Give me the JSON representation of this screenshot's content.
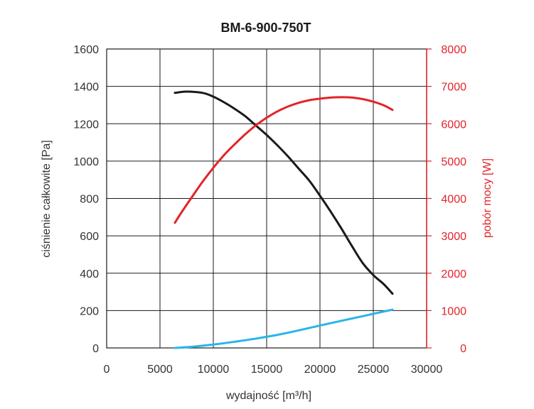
{
  "chart_data": {
    "type": "line",
    "title": "BM-6-900-750T",
    "xlabel": "wydajność [m³/h]",
    "ylabel_left": "ciśnienie całkowite [Pa]",
    "ylabel_right": "pobór mocy [W]",
    "xlim": [
      0,
      30000
    ],
    "ylim_left": [
      0,
      1600
    ],
    "ylim_right": [
      0,
      8000
    ],
    "grid": true,
    "x_ticks": [
      "0",
      "5000",
      "10000",
      "15000",
      "20000",
      "25000",
      "30000"
    ],
    "y_ticks_left": [
      "0",
      "200",
      "400",
      "600",
      "800",
      "1000",
      "1200",
      "1400",
      "1600"
    ],
    "y_ticks_right": [
      "0",
      "1000",
      "2000",
      "3000",
      "4000",
      "5000",
      "6000",
      "7000",
      "8000"
    ],
    "series": [
      {
        "id": "total-pressure",
        "axis": "left",
        "color": "#1a1a1a",
        "points": [
          [
            6400,
            1365
          ],
          [
            7500,
            1372
          ],
          [
            9000,
            1365
          ],
          [
            10000,
            1345
          ],
          [
            11000,
            1315
          ],
          [
            12000,
            1280
          ],
          [
            13000,
            1240
          ],
          [
            14000,
            1190
          ],
          [
            15000,
            1140
          ],
          [
            16000,
            1085
          ],
          [
            17000,
            1025
          ],
          [
            18000,
            960
          ],
          [
            19000,
            895
          ],
          [
            20000,
            815
          ],
          [
            21000,
            730
          ],
          [
            22000,
            640
          ],
          [
            23000,
            545
          ],
          [
            24000,
            455
          ],
          [
            25000,
            390
          ],
          [
            26000,
            340
          ],
          [
            26800,
            290
          ]
        ]
      },
      {
        "id": "power-consumption",
        "axis": "right",
        "color": "#e2242b",
        "points": [
          [
            6400,
            3350
          ],
          [
            7000,
            3620
          ],
          [
            8000,
            4040
          ],
          [
            9000,
            4450
          ],
          [
            10000,
            4820
          ],
          [
            11000,
            5160
          ],
          [
            12000,
            5450
          ],
          [
            13000,
            5720
          ],
          [
            14000,
            5960
          ],
          [
            15000,
            6160
          ],
          [
            16000,
            6330
          ],
          [
            17000,
            6460
          ],
          [
            18000,
            6560
          ],
          [
            19000,
            6630
          ],
          [
            20000,
            6670
          ],
          [
            21000,
            6700
          ],
          [
            22000,
            6710
          ],
          [
            23000,
            6700
          ],
          [
            24000,
            6660
          ],
          [
            25000,
            6590
          ],
          [
            26000,
            6490
          ],
          [
            26800,
            6370
          ]
        ]
      },
      {
        "id": "static-pressure",
        "axis": "left",
        "color": "#29b4e8",
        "points": [
          [
            6400,
            0
          ],
          [
            8000,
            6
          ],
          [
            10000,
            18
          ],
          [
            12000,
            33
          ],
          [
            14000,
            50
          ],
          [
            16000,
            70
          ],
          [
            18000,
            94
          ],
          [
            20000,
            120
          ],
          [
            22000,
            145
          ],
          [
            24000,
            170
          ],
          [
            26000,
            195
          ],
          [
            26800,
            205
          ]
        ]
      }
    ]
  }
}
